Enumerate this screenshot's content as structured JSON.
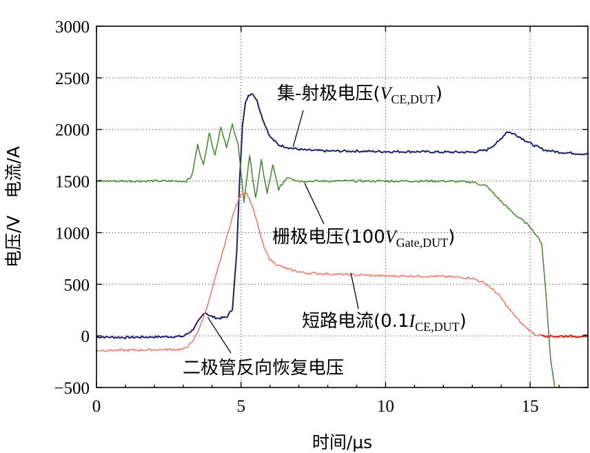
{
  "chart_data": {
    "type": "line",
    "xlabel": "时间/μs",
    "ylabel": "电压/V　电流/A",
    "xlim": [
      0,
      17
    ],
    "ylim": [
      -500,
      3000
    ],
    "xticks": [
      0,
      5,
      10,
      15
    ],
    "yticks": [
      -500,
      0,
      500,
      1000,
      1500,
      2000,
      2500,
      3000
    ],
    "xtick_labels": [
      "0",
      "5",
      "10",
      "15"
    ],
    "ytick_labels": [
      "−500",
      "0",
      "500",
      "1000",
      "1500",
      "2000",
      "2500",
      "3000"
    ],
    "grid": true,
    "series": [
      {
        "name": "集-射极电压(V CE,DUT)",
        "color": "#1b1f6b",
        "x": [
          0,
          1,
          2,
          3,
          3.3,
          3.55,
          3.75,
          3.95,
          4.2,
          4.5,
          4.7,
          4.85,
          4.95,
          5.05,
          5.15,
          5.25,
          5.4,
          5.55,
          5.75,
          6.0,
          6.3,
          6.7,
          7.2,
          8,
          9,
          10,
          11,
          12,
          13,
          13.5,
          13.9,
          14.2,
          14.5,
          14.8,
          15.1,
          15.5,
          16,
          16.5,
          17
        ],
        "y": [
          -10,
          -15,
          -10,
          -5,
          50,
          150,
          230,
          190,
          170,
          180,
          260,
          800,
          1500,
          2050,
          2250,
          2330,
          2350,
          2280,
          2100,
          1930,
          1850,
          1820,
          1800,
          1790,
          1790,
          1785,
          1785,
          1780,
          1780,
          1800,
          1880,
          1980,
          1950,
          1900,
          1850,
          1800,
          1780,
          1770,
          1760
        ]
      },
      {
        "name": "栅极电压(100V Gate,DUT)",
        "color": "#4a8a35",
        "x": [
          0,
          1,
          2,
          3.1,
          3.3,
          3.5,
          3.7,
          3.9,
          4.1,
          4.3,
          4.5,
          4.7,
          4.9,
          5.1,
          5.3,
          5.5,
          5.7,
          5.9,
          6.1,
          6.3,
          6.6,
          7.0,
          8,
          9,
          10,
          11,
          12,
          13,
          13.5,
          14,
          14.5,
          15,
          15.4,
          15.55,
          15.7,
          15.85
        ],
        "y": [
          1500,
          1500,
          1500,
          1500,
          1550,
          1850,
          1650,
          1970,
          1750,
          2030,
          1820,
          2050,
          1850,
          1300,
          1750,
          1330,
          1700,
          1380,
          1650,
          1420,
          1540,
          1500,
          1500,
          1500,
          1500,
          1500,
          1500,
          1490,
          1450,
          1300,
          1170,
          1060,
          900,
          400,
          -200,
          -500
        ]
      },
      {
        "name": "短路电流(0.1I CE,DUT)",
        "color": "#f07a6a",
        "x": [
          0,
          1,
          2,
          3,
          3.3,
          3.6,
          3.9,
          4.2,
          4.5,
          4.75,
          5.0,
          5.2,
          5.4,
          5.6,
          5.8,
          6.0,
          6.3,
          6.7,
          7.2,
          8,
          9,
          10,
          11,
          12,
          13,
          13.5,
          13.9,
          14.3,
          14.7,
          15.0,
          15.2,
          15.5,
          15.8,
          16.5,
          17
        ],
        "y": [
          -140,
          -140,
          -135,
          -130,
          -70,
          100,
          350,
          650,
          950,
          1200,
          1380,
          1380,
          1250,
          1050,
          850,
          740,
          680,
          640,
          610,
          600,
          590,
          580,
          580,
          575,
          560,
          500,
          400,
          250,
          120,
          50,
          10,
          0,
          -10,
          -5,
          -5
        ]
      },
      {
        "name": "",
        "color": "#c21a1a",
        "x": [
          15.4,
          15.8,
          16.2,
          16.6,
          17
        ],
        "y": [
          0,
          -5,
          0,
          -5,
          0
        ]
      }
    ],
    "annotations": [
      {
        "text": "集-射极电压(",
        "var": "V",
        "sub": "CE,DUT",
        "close": ")",
        "point": [
          6.8,
          1830
        ]
      },
      {
        "text": "栅极电压(100",
        "var": "V",
        "sub": "Gate,DUT",
        "close": ")",
        "point": [
          7.2,
          1480
        ]
      },
      {
        "text": "短路电流(0.1",
        "var": "I",
        "sub": "CE,DUT",
        "close": ")",
        "point": [
          8.8,
          610
        ]
      },
      {
        "text": "二极管反向恢复电压",
        "var": "",
        "sub": "",
        "close": "",
        "point": [
          3.85,
          180
        ]
      }
    ]
  }
}
